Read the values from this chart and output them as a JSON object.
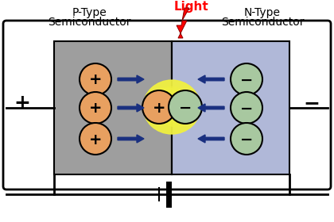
{
  "bg_color": "#ffffff",
  "p_type_color": "#9e9e9e",
  "n_type_color": "#b0b8d8",
  "plus_color": "#e8a060",
  "minus_color": "#a8c8a0",
  "glow_color": "#f0f040",
  "arrow_color": "#1a3080",
  "text_color": "#000000",
  "light_color": "#ff0000",
  "p_label_1": "P-Type",
  "p_label_2": "Semiconductor",
  "n_label_1": "N-Type",
  "n_label_2": "Semiconductor",
  "light_label": "Light",
  "plus_sym": "+",
  "minus_sym": "−",
  "circuit_plus": "+",
  "circuit_minus": "−"
}
